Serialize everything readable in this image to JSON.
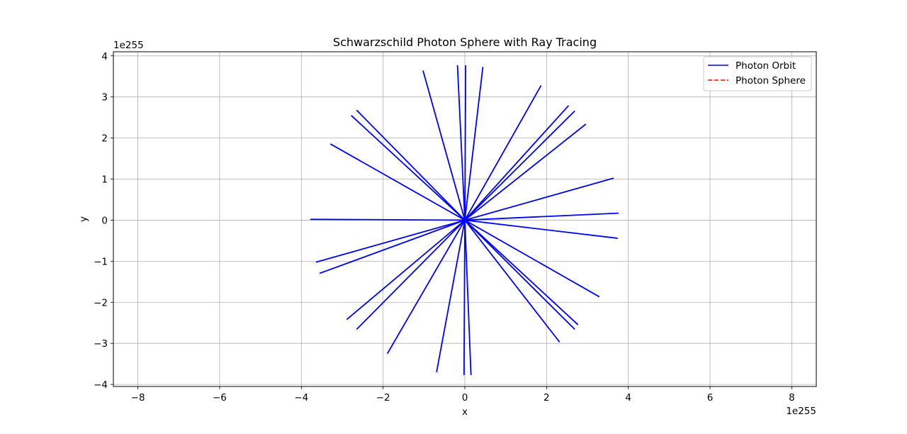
{
  "chart_data": {
    "type": "line",
    "title": "Schwarzschild Photon Sphere with Ray Tracing",
    "xlabel": "x",
    "ylabel": "y",
    "x_offset_label": "1e255",
    "y_offset_label": "1e255",
    "xlim": [
      -8.6,
      8.6
    ],
    "ylim": [
      -4.05,
      4.1
    ],
    "xticks": [
      -8,
      -6,
      -4,
      -2,
      0,
      2,
      4,
      6,
      8
    ],
    "yticks": [
      -4,
      -3,
      -2,
      -1,
      0,
      1,
      2,
      3,
      4
    ],
    "xtick_labels": [
      "−8",
      "−6",
      "−4",
      "−2",
      "0",
      "2",
      "4",
      "6",
      "8"
    ],
    "ytick_labels": [
      "−4",
      "−3",
      "−2",
      "−1",
      "0",
      "1",
      "2",
      "3",
      "4"
    ],
    "grid": true,
    "legend_position": "top-right",
    "legend": [
      {
        "label": "Photon Orbit",
        "color": "#0000ff",
        "style": "solid"
      },
      {
        "label": "Photon Sphere",
        "color": "#ff0000",
        "style": "dashed"
      }
    ],
    "series": [
      {
        "name": "Photon Orbit",
        "color": "#0000ff",
        "rays": [
          [
            0.02,
            3.76
          ],
          [
            -0.18,
            3.76
          ],
          [
            0.44,
            3.72
          ],
          [
            -1.02,
            3.63
          ],
          [
            1.86,
            3.27
          ],
          [
            2.53,
            2.78
          ],
          [
            -2.64,
            2.67
          ],
          [
            2.68,
            2.65
          ],
          [
            -2.77,
            2.54
          ],
          [
            2.95,
            2.33
          ],
          [
            -3.28,
            1.85
          ],
          [
            3.63,
            1.02
          ],
          [
            3.75,
            0.17
          ],
          [
            -3.77,
            0.02
          ],
          [
            3.73,
            -0.44
          ],
          [
            -3.63,
            -1.02
          ],
          [
            -3.54,
            -1.29
          ],
          [
            3.28,
            -1.86
          ],
          [
            -2.88,
            -2.41
          ],
          [
            2.76,
            -2.54
          ],
          [
            2.68,
            -2.65
          ],
          [
            -2.64,
            -2.65
          ],
          [
            2.31,
            -2.96
          ],
          [
            -1.89,
            -3.24
          ],
          [
            -0.69,
            -3.69
          ],
          [
            0.15,
            -3.76
          ],
          [
            -0.02,
            -3.76
          ]
        ]
      },
      {
        "name": "Photon Sphere",
        "color": "#ff0000",
        "rays": []
      }
    ]
  }
}
